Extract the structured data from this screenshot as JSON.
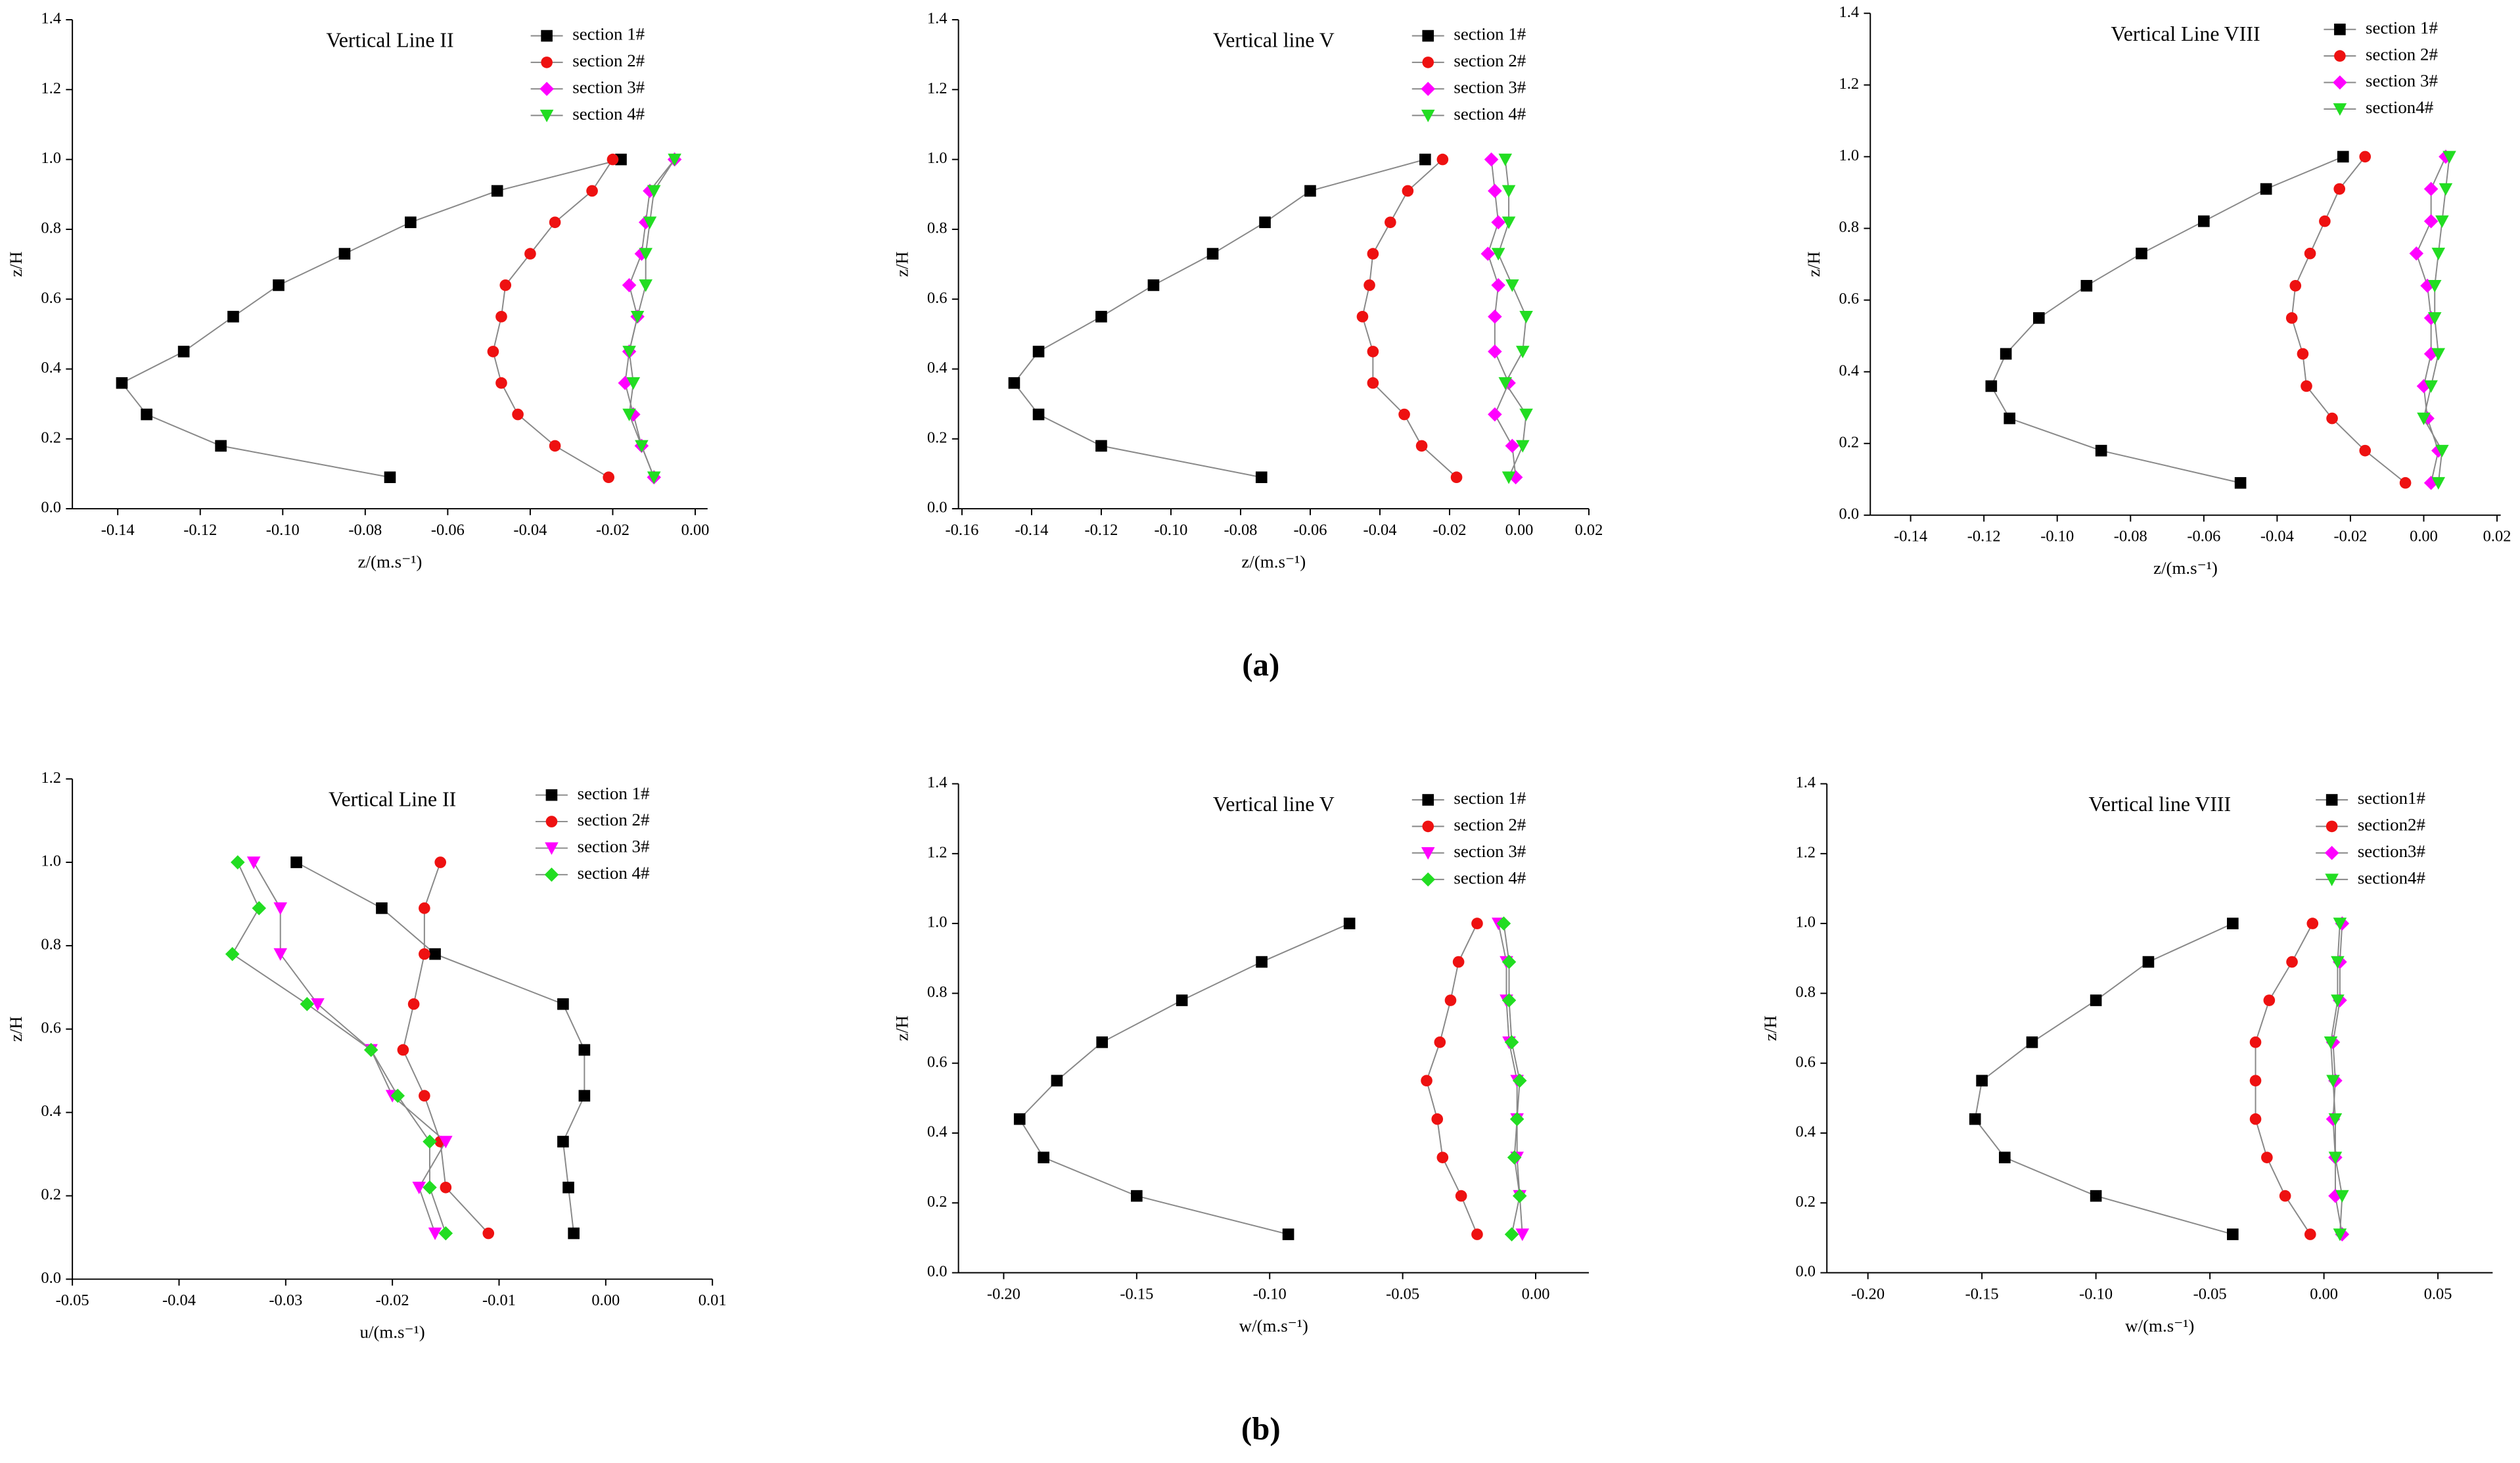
{
  "captions": [
    "(a)",
    "(b)"
  ],
  "chart_data": [
    {
      "type": "line",
      "title": "Vertical Line II",
      "xlabel": "z/(m.s⁻¹)",
      "ylabel": "z/H",
      "xlim": [
        -0.151,
        0.003
      ],
      "xticks": [
        -0.14,
        -0.12,
        {
          "value": -0.1,
          "label": "-0.10"
        },
        -0.08,
        -0.06,
        -0.04,
        -0.02,
        {
          "value": 0,
          "label": "0.00"
        }
      ],
      "ylim": [
        0,
        1.4
      ],
      "yticks": [
        {
          "value": 0,
          "label": "0.0"
        },
        0.2,
        0.4,
        0.6,
        0.8,
        {
          "value": 1,
          "label": "1.0"
        },
        1.2,
        1.4
      ],
      "z": [
        0.09,
        0.18,
        0.27,
        0.36,
        0.45,
        0.55,
        0.64,
        0.73,
        0.82,
        0.91,
        1.0
      ],
      "series": [
        {
          "name": "section 1#",
          "color": "#000000",
          "marker": "square",
          "values": [
            -0.074,
            -0.115,
            -0.133,
            -0.139,
            -0.124,
            -0.112,
            -0.101,
            -0.085,
            -0.069,
            -0.048,
            -0.018
          ]
        },
        {
          "name": "section 2#",
          "color": "#ee1111",
          "marker": "circle",
          "values": [
            -0.021,
            -0.034,
            -0.043,
            -0.047,
            -0.049,
            -0.047,
            -0.046,
            -0.04,
            -0.034,
            -0.025,
            -0.02
          ]
        },
        {
          "name": "section 3#",
          "color": "#ff00ff",
          "marker": "diamond",
          "values": [
            -0.01,
            -0.013,
            -0.015,
            -0.017,
            -0.016,
            -0.014,
            -0.016,
            -0.013,
            -0.012,
            -0.011,
            -0.005
          ]
        },
        {
          "name": "section 4#",
          "color": "#22dd22",
          "marker": "triangle-down",
          "values": [
            -0.01,
            -0.013,
            -0.016,
            -0.015,
            -0.016,
            -0.014,
            -0.012,
            -0.012,
            -0.011,
            -0.01,
            -0.005
          ]
        }
      ]
    },
    {
      "type": "line",
      "title": "Vertical line V",
      "xlabel": "z/(m.s⁻¹)",
      "ylabel": "z/H",
      "xlim": [
        -0.161,
        0.02
      ],
      "xticks": [
        -0.16,
        -0.14,
        -0.12,
        {
          "value": -0.1,
          "label": "-0.10"
        },
        -0.08,
        -0.06,
        -0.04,
        -0.02,
        {
          "value": 0,
          "label": "0.00"
        },
        0.02
      ],
      "ylim": [
        0,
        1.4
      ],
      "yticks": [
        {
          "value": 0,
          "label": "0.0"
        },
        0.2,
        0.4,
        0.6,
        0.8,
        {
          "value": 1,
          "label": "1.0"
        },
        1.2,
        1.4
      ],
      "z": [
        0.09,
        0.18,
        0.27,
        0.36,
        0.45,
        0.55,
        0.64,
        0.73,
        0.82,
        0.91,
        1.0
      ],
      "series": [
        {
          "name": "section 1#",
          "color": "#000000",
          "marker": "square",
          "values": [
            -0.074,
            -0.12,
            -0.138,
            -0.145,
            -0.138,
            -0.12,
            -0.105,
            -0.088,
            -0.073,
            -0.06,
            -0.027
          ]
        },
        {
          "name": "section 2#",
          "color": "#ee1111",
          "marker": "circle",
          "values": [
            -0.018,
            -0.028,
            -0.033,
            -0.042,
            -0.042,
            -0.045,
            -0.043,
            -0.042,
            -0.037,
            -0.032,
            -0.022
          ]
        },
        {
          "name": "section 3#",
          "color": "#ff00ff",
          "marker": "diamond",
          "values": [
            -0.001,
            -0.002,
            -0.007,
            -0.003,
            -0.007,
            -0.007,
            -0.006,
            -0.009,
            -0.006,
            -0.007,
            -0.008
          ]
        },
        {
          "name": "section 4#",
          "color": "#22dd22",
          "marker": "triangle-down",
          "values": [
            -0.003,
            0.001,
            0.002,
            -0.004,
            0.001,
            0.002,
            -0.002,
            -0.006,
            -0.003,
            -0.003,
            -0.004
          ]
        }
      ]
    },
    {
      "type": "line",
      "title": "Vertical Line VIII",
      "xlabel": "z/(m.s⁻¹)",
      "ylabel": "z/H",
      "xlim": [
        -0.151,
        0.021
      ],
      "xticks": [
        -0.14,
        -0.12,
        {
          "value": -0.1,
          "label": "-0.10"
        },
        -0.08,
        -0.06,
        -0.04,
        -0.02,
        {
          "value": 0,
          "label": "0.00"
        },
        0.02
      ],
      "ylim": [
        0,
        1.4
      ],
      "yticks": [
        {
          "value": 0,
          "label": "0.0"
        },
        0.2,
        0.4,
        0.6,
        0.8,
        {
          "value": 1,
          "label": "1.0"
        },
        1.2,
        1.4
      ],
      "z": [
        0.09,
        0.18,
        0.27,
        0.36,
        0.45,
        0.55,
        0.64,
        0.73,
        0.82,
        0.91,
        1.0
      ],
      "series": [
        {
          "name": "section 1#",
          "color": "#000000",
          "marker": "square",
          "values": [
            -0.05,
            -0.088,
            -0.113,
            -0.118,
            -0.114,
            -0.105,
            -0.092,
            -0.077,
            -0.06,
            -0.043,
            -0.022
          ]
        },
        {
          "name": "section 2#",
          "color": "#ee1111",
          "marker": "circle",
          "values": [
            -0.005,
            -0.016,
            -0.025,
            -0.032,
            -0.033,
            -0.036,
            -0.035,
            -0.031,
            -0.027,
            -0.023,
            -0.016
          ]
        },
        {
          "name": "section 3#",
          "color": "#ff00ff",
          "marker": "diamond",
          "values": [
            0.002,
            0.004,
            0.001,
            0.0,
            0.002,
            0.002,
            0.001,
            -0.002,
            0.002,
            0.002,
            0.006
          ]
        },
        {
          "name": "section4#",
          "color": "#22dd22",
          "marker": "triangle-down",
          "values": [
            0.004,
            0.005,
            0.0,
            0.002,
            0.004,
            0.003,
            0.003,
            0.004,
            0.005,
            0.006,
            0.007
          ]
        }
      ]
    },
    {
      "type": "line",
      "title": "Vertical Line II",
      "xlabel": "u/(m.s⁻¹)",
      "ylabel": "z/H",
      "xlim": [
        -0.05,
        0.01
      ],
      "xticks": [
        -0.05,
        -0.04,
        -0.03,
        -0.02,
        -0.01,
        {
          "value": 0,
          "label": "0.00"
        },
        0.01
      ],
      "ylim": [
        0,
        1.2
      ],
      "yticks": [
        {
          "value": 0,
          "label": "0.0"
        },
        0.2,
        0.4,
        0.6,
        0.8,
        {
          "value": 1,
          "label": "1.0"
        },
        1.2
      ],
      "z": [
        0.11,
        0.22,
        0.33,
        0.44,
        0.55,
        0.66,
        0.78,
        0.89,
        1.0
      ],
      "series": [
        {
          "name": "section 1#",
          "color": "#000000",
          "marker": "square",
          "values": [
            -0.003,
            -0.0035,
            -0.004,
            -0.002,
            -0.002,
            -0.004,
            -0.016,
            -0.021,
            -0.029
          ]
        },
        {
          "name": "section 2#",
          "color": "#ee1111",
          "marker": "circle",
          "values": [
            -0.011,
            -0.015,
            -0.0155,
            -0.017,
            -0.019,
            -0.018,
            -0.017,
            -0.017,
            -0.0155
          ]
        },
        {
          "name": "section 3#",
          "color": "#ff00ff",
          "marker": "triangle-down",
          "values": [
            -0.016,
            -0.0175,
            -0.015,
            -0.02,
            -0.022,
            -0.027,
            -0.0305,
            -0.0305,
            -0.033
          ]
        },
        {
          "name": "section 4#",
          "color": "#22dd22",
          "marker": "diamond",
          "values": [
            -0.015,
            -0.0165,
            -0.0165,
            -0.0195,
            -0.022,
            -0.028,
            -0.035,
            -0.0325,
            -0.0345
          ]
        }
      ]
    },
    {
      "type": "line",
      "title": "Vertical line V",
      "xlabel": "w/(m.s⁻¹)",
      "ylabel": "z/H",
      "xlim": [
        -0.217,
        0.02
      ],
      "xticks": [
        {
          "value": -0.2,
          "label": "-0.20"
        },
        -0.15,
        {
          "value": -0.1,
          "label": "-0.10"
        },
        -0.05,
        {
          "value": 0,
          "label": "0.00"
        }
      ],
      "ylim": [
        0,
        1.4
      ],
      "yticks": [
        {
          "value": 0,
          "label": "0.0"
        },
        0.2,
        0.4,
        0.6,
        0.8,
        {
          "value": 1,
          "label": "1.0"
        },
        1.2,
        1.4
      ],
      "z": [
        0.11,
        0.22,
        0.33,
        0.44,
        0.55,
        0.66,
        0.78,
        0.89,
        1.0
      ],
      "series": [
        {
          "name": "section 1#",
          "color": "#000000",
          "marker": "square",
          "values": [
            -0.093,
            -0.15,
            -0.185,
            -0.194,
            -0.18,
            -0.163,
            -0.133,
            -0.103,
            -0.07
          ]
        },
        {
          "name": "section 2#",
          "color": "#ee1111",
          "marker": "circle",
          "values": [
            -0.022,
            -0.028,
            -0.035,
            -0.037,
            -0.041,
            -0.036,
            -0.032,
            -0.029,
            -0.022
          ]
        },
        {
          "name": "section 3#",
          "color": "#ff00ff",
          "marker": "triangle-down",
          "values": [
            -0.005,
            -0.006,
            -0.007,
            -0.007,
            -0.007,
            -0.01,
            -0.011,
            -0.011,
            -0.014
          ]
        },
        {
          "name": "section 4#",
          "color": "#22dd22",
          "marker": "diamond",
          "values": [
            -0.009,
            -0.006,
            -0.008,
            -0.007,
            -0.006,
            -0.009,
            -0.01,
            -0.01,
            -0.012
          ]
        }
      ]
    },
    {
      "type": "line",
      "title": "Vertical line VIII",
      "xlabel": "w/(m.s⁻¹)",
      "ylabel": "z/H",
      "xlim": [
        -0.218,
        0.074
      ],
      "xticks": [
        {
          "value": -0.2,
          "label": "-0.20"
        },
        -0.15,
        {
          "value": -0.1,
          "label": "-0.10"
        },
        -0.05,
        {
          "value": 0,
          "label": "0.00"
        },
        0.05
      ],
      "ylim": [
        0,
        1.4
      ],
      "yticks": [
        {
          "value": 0,
          "label": "0.0"
        },
        0.2,
        0.4,
        0.6,
        0.8,
        {
          "value": 1,
          "label": "1.0"
        },
        1.2,
        1.4
      ],
      "z": [
        0.11,
        0.22,
        0.33,
        0.44,
        0.55,
        0.66,
        0.78,
        0.89,
        1.0
      ],
      "series": [
        {
          "name": "section1#",
          "color": "#000000",
          "marker": "square",
          "values": [
            -0.04,
            -0.1,
            -0.14,
            -0.153,
            -0.15,
            -0.128,
            -0.1,
            -0.077,
            -0.04
          ]
        },
        {
          "name": "section2#",
          "color": "#ee1111",
          "marker": "circle",
          "values": [
            -0.006,
            -0.017,
            -0.025,
            -0.03,
            -0.03,
            -0.03,
            -0.024,
            -0.014,
            -0.005
          ]
        },
        {
          "name": "section3#",
          "color": "#ff00ff",
          "marker": "diamond",
          "values": [
            0.008,
            0.005,
            0.005,
            0.004,
            0.005,
            0.004,
            0.007,
            0.007,
            0.008
          ]
        },
        {
          "name": "section4#",
          "color": "#22dd22",
          "marker": "triangle-down",
          "values": [
            0.007,
            0.008,
            0.005,
            0.005,
            0.004,
            0.003,
            0.006,
            0.006,
            0.007
          ]
        }
      ]
    }
  ]
}
